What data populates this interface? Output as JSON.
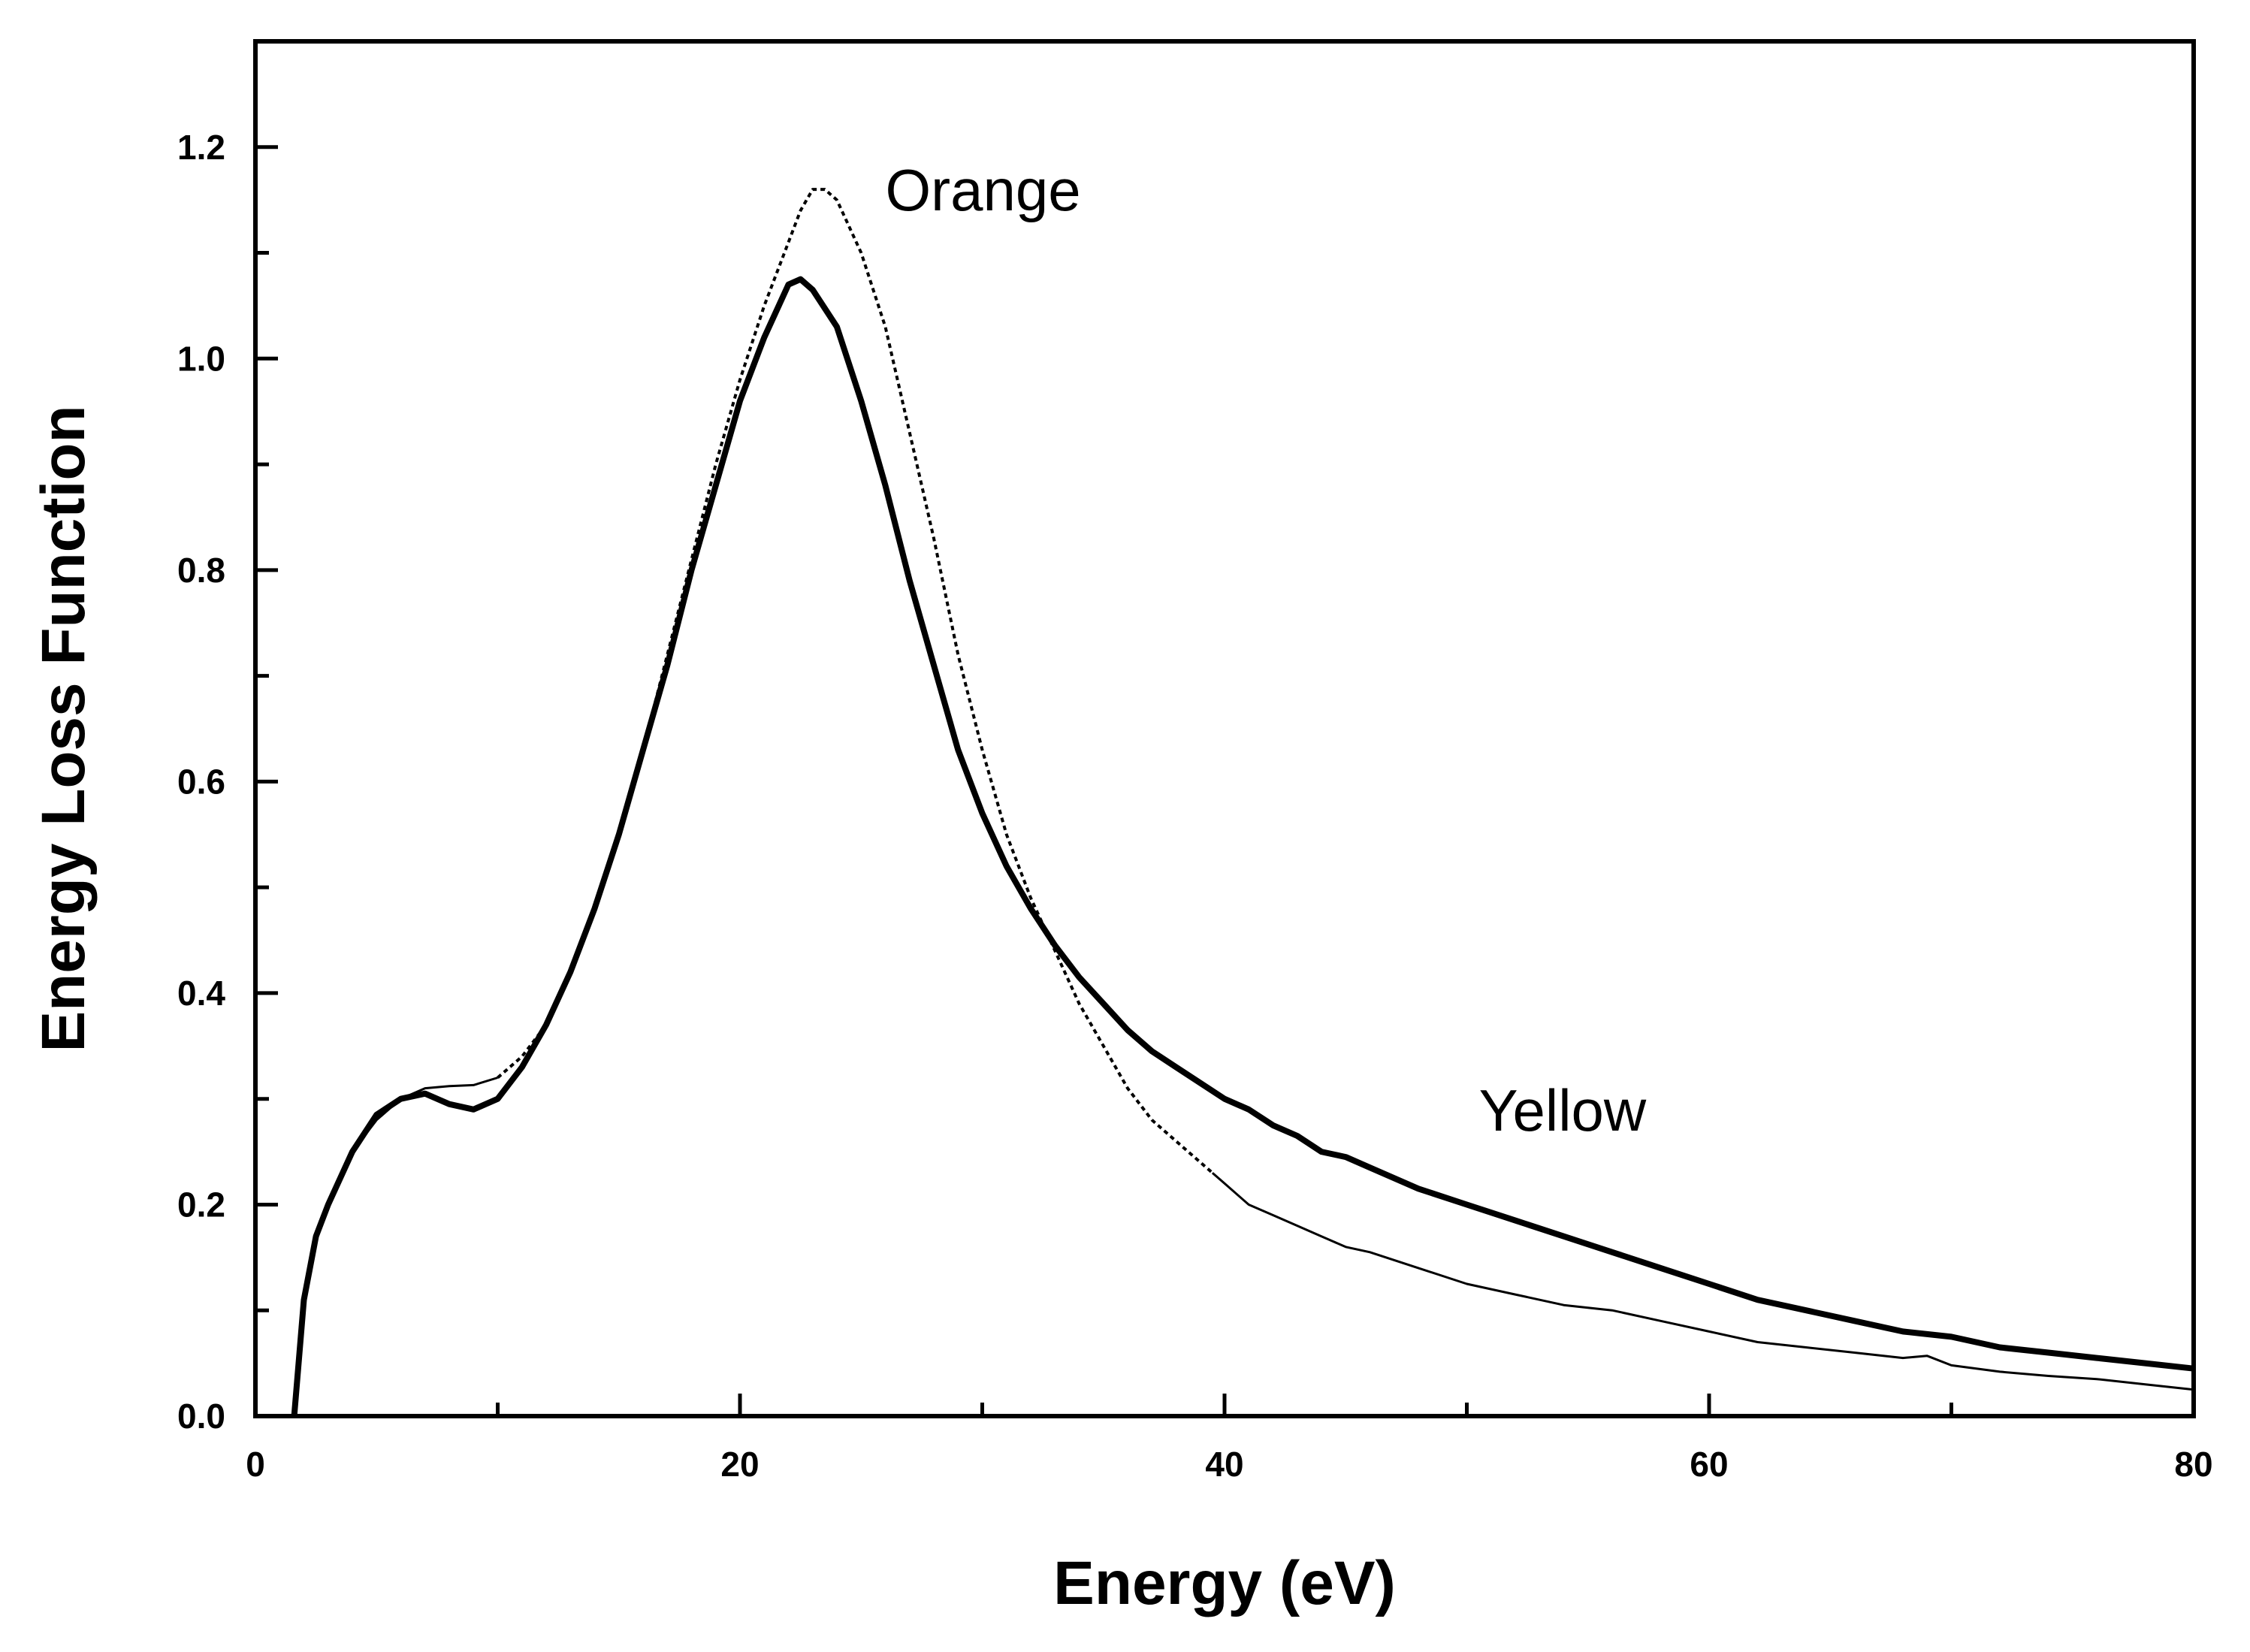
{
  "chart_data": {
    "type": "line",
    "title": "",
    "xlabel": "Energy (eV)",
    "ylabel": "Energy Loss Function",
    "xlim": [
      0,
      80
    ],
    "ylim": [
      0,
      1.3
    ],
    "xticks": [
      0,
      20,
      40,
      60,
      80
    ],
    "xtick_labels": [
      "0",
      "20",
      "40",
      "60",
      "80"
    ],
    "yticks": [
      0.0,
      0.2,
      0.4,
      0.6,
      0.8,
      1.0,
      1.2
    ],
    "ytick_labels": [
      "0.0",
      "0.2",
      "0.4",
      "0.6",
      "0.8",
      "1.0",
      "1.2"
    ],
    "grid": false,
    "series": [
      {
        "name": "Orange",
        "style": "dotted-then-thin",
        "label_at": [
          26,
          1.14
        ],
        "x": [
          1.6,
          2.0,
          2.5,
          3.0,
          4.0,
          5.0,
          6.0,
          7.0,
          8.0,
          9.0,
          10.0,
          11.0,
          12.0,
          13.0,
          14.0,
          15.0,
          16.0,
          17.0,
          18.0,
          19.0,
          20.0,
          21.0,
          22.0,
          22.5,
          23.0,
          23.5,
          24.0,
          25.0,
          26.0,
          27.0,
          28.0,
          29.0,
          30.0,
          31.0,
          32.0,
          33.0,
          34.0,
          35.0,
          36.0,
          37.0,
          38.0,
          39.0,
          39.5,
          40.0,
          41.0,
          42.0,
          43.0,
          44.0,
          45.0,
          46.0,
          48.0,
          50.0,
          52.0,
          54.0,
          56.0,
          58.0,
          60.0,
          62.0,
          64.0,
          66.0,
          68.0,
          69.0,
          70.0,
          72.0,
          74.0,
          76.0,
          78.0,
          80.0
        ],
        "y": [
          0.0,
          0.11,
          0.17,
          0.2,
          0.25,
          0.28,
          0.3,
          0.31,
          0.312,
          0.313,
          0.32,
          0.34,
          0.37,
          0.42,
          0.48,
          0.55,
          0.63,
          0.72,
          0.81,
          0.9,
          0.98,
          1.05,
          1.11,
          1.14,
          1.16,
          1.16,
          1.15,
          1.1,
          1.03,
          0.93,
          0.83,
          0.72,
          0.63,
          0.55,
          0.49,
          0.44,
          0.39,
          0.35,
          0.31,
          0.28,
          0.26,
          0.24,
          0.23,
          0.22,
          0.2,
          0.19,
          0.18,
          0.17,
          0.16,
          0.155,
          0.14,
          0.125,
          0.115,
          0.105,
          0.1,
          0.09,
          0.08,
          0.07,
          0.065,
          0.06,
          0.055,
          0.057,
          0.048,
          0.042,
          0.038,
          0.035,
          0.03,
          0.025
        ]
      },
      {
        "name": "Yellow",
        "style": "thick",
        "label_at": [
          50.5,
          0.27
        ],
        "x": [
          1.6,
          2.0,
          2.5,
          3.0,
          4.0,
          5.0,
          6.0,
          7.0,
          8.0,
          9.0,
          10.0,
          11.0,
          12.0,
          13.0,
          14.0,
          15.0,
          16.0,
          17.0,
          18.0,
          19.0,
          20.0,
          21.0,
          22.0,
          22.5,
          23.0,
          24.0,
          25.0,
          26.0,
          27.0,
          28.0,
          29.0,
          30.0,
          31.0,
          32.0,
          33.0,
          34.0,
          35.0,
          36.0,
          37.0,
          38.0,
          39.0,
          40.0,
          41.0,
          42.0,
          43.0,
          44.0,
          45.0,
          46.0,
          48.0,
          50.0,
          52.0,
          54.0,
          56.0,
          58.0,
          60.0,
          62.0,
          64.0,
          66.0,
          68.0,
          70.0,
          72.0,
          74.0,
          76.0,
          78.0,
          80.0
        ],
        "y": [
          0.0,
          0.11,
          0.17,
          0.2,
          0.25,
          0.285,
          0.3,
          0.305,
          0.295,
          0.29,
          0.3,
          0.33,
          0.37,
          0.42,
          0.48,
          0.55,
          0.63,
          0.71,
          0.8,
          0.88,
          0.96,
          1.02,
          1.07,
          1.075,
          1.065,
          1.03,
          0.96,
          0.88,
          0.79,
          0.71,
          0.63,
          0.57,
          0.52,
          0.48,
          0.445,
          0.415,
          0.39,
          0.365,
          0.345,
          0.33,
          0.315,
          0.3,
          0.29,
          0.275,
          0.265,
          0.25,
          0.245,
          0.235,
          0.215,
          0.2,
          0.185,
          0.17,
          0.155,
          0.14,
          0.125,
          0.11,
          0.1,
          0.09,
          0.08,
          0.075,
          0.065,
          0.06,
          0.055,
          0.05,
          0.045
        ]
      }
    ]
  }
}
